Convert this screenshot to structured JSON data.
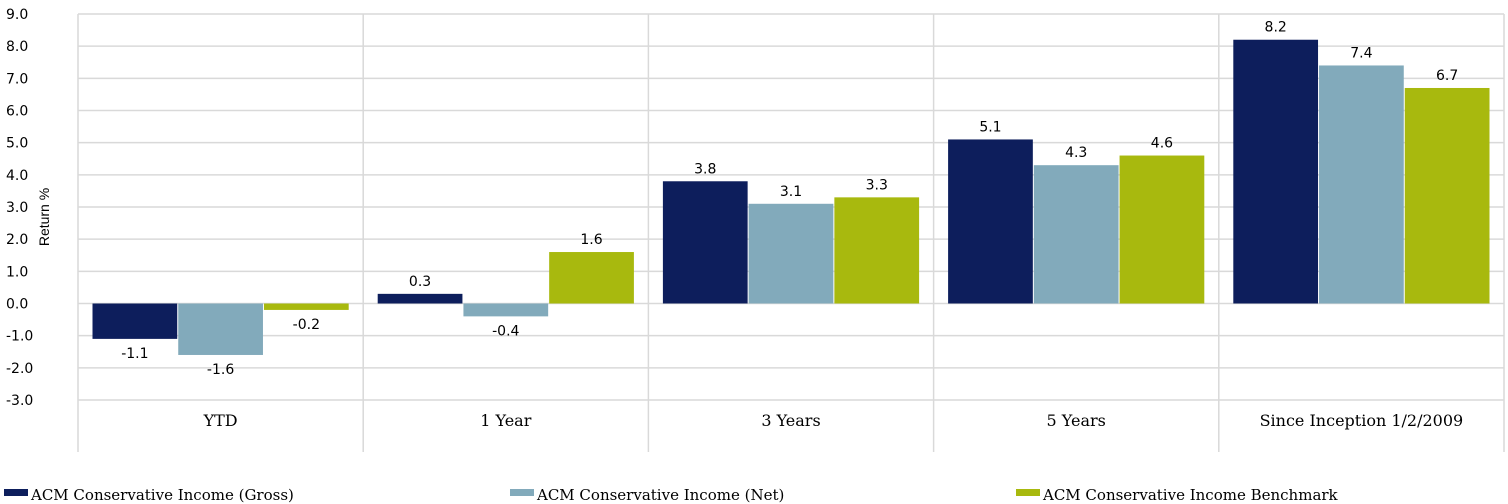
{
  "chart_data": {
    "type": "bar",
    "title": "",
    "xlabel": "",
    "ylabel": "Return %",
    "ylim": [
      -3.0,
      9.0
    ],
    "yticks": [
      "9.0",
      "8.0",
      "7.0",
      "6.0",
      "5.0",
      "4.0",
      "3.0",
      "2.0",
      "1.0",
      "0.0",
      "-1.0",
      "-2.0",
      "-3.0"
    ],
    "grid": true,
    "legend_position": "bottom",
    "categories": [
      "YTD",
      "1 Year",
      "3 Years",
      "5 Years",
      "Since Inception 1/2/2009"
    ],
    "series": [
      {
        "name": "ACM Conservative Income (Gross)",
        "color": "#0d1e5c",
        "values": [
          -1.1,
          0.3,
          3.8,
          5.1,
          8.2
        ],
        "labels": [
          "-1.1",
          "0.3",
          "3.8",
          "5.1",
          "8.2"
        ]
      },
      {
        "name": "ACM Conservative Income (Net)",
        "color": "#82aabb",
        "values": [
          -1.6,
          -0.4,
          3.1,
          4.3,
          7.4
        ],
        "labels": [
          "-1.6",
          "-0.4",
          "3.1",
          "4.3",
          "7.4"
        ]
      },
      {
        "name": "ACM Conservative Income Benchmark",
        "color": "#a8b90e",
        "values": [
          -0.2,
          1.6,
          3.3,
          4.6,
          6.7
        ],
        "labels": [
          "-0.2",
          "1.6",
          "3.3",
          "4.6",
          "6.7"
        ]
      }
    ]
  }
}
